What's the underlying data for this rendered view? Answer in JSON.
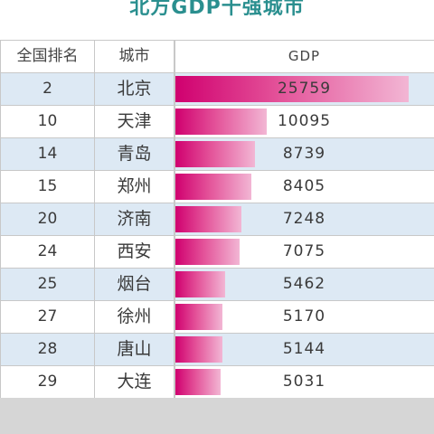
{
  "title": "北方GDP十强城市",
  "headers": {
    "rank": "全国排名",
    "city": "城市",
    "gdp": "GDP"
  },
  "colors": {
    "bar_start": "#d0006f",
    "bar_end": "#f2b6d4",
    "title": "#2a8f8f",
    "alt_row": "#dde9f4"
  },
  "chart_data": {
    "type": "table",
    "title": "北方GDP十强城市",
    "columns": [
      "全国排名",
      "城市",
      "GDP"
    ],
    "rows": [
      {
        "rank": "2",
        "city": "北京",
        "gdp": 25759
      },
      {
        "rank": "10",
        "city": "天津",
        "gdp": 10095
      },
      {
        "rank": "14",
        "city": "青岛",
        "gdp": 8739
      },
      {
        "rank": "15",
        "city": "郑州",
        "gdp": 8405
      },
      {
        "rank": "20",
        "city": "济南",
        "gdp": 7248
      },
      {
        "rank": "24",
        "city": "西安",
        "gdp": 7075
      },
      {
        "rank": "25",
        "city": "烟台",
        "gdp": 5462
      },
      {
        "rank": "27",
        "city": "徐州",
        "gdp": 5170
      },
      {
        "rank": "28",
        "city": "唐山",
        "gdp": 5144
      },
      {
        "rank": "29",
        "city": "大连",
        "gdp": 5031
      }
    ],
    "bar_max": 25759
  }
}
